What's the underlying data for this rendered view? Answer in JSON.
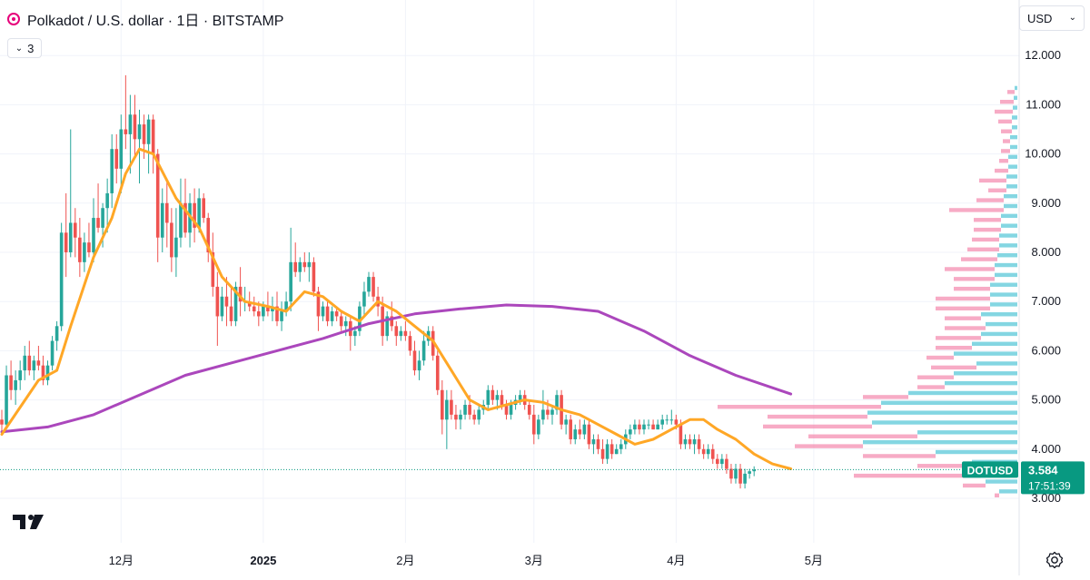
{
  "header": {
    "symbol_title": "Polkadot / U.S. dollar · 1日 · BITSTAMP",
    "indicator_count": "3",
    "currency": "USD"
  },
  "colors": {
    "up": "#26a69a",
    "down": "#ef5350",
    "ma_fast": "#ffa726",
    "ma_slow": "#ab47bc",
    "vp_up": "#5bc8d8",
    "vp_down": "#f48fb1",
    "price_tag": "#089981"
  },
  "price_tag": {
    "symbol": "DOTUSD",
    "price": "3.584",
    "countdown": "17:51:39"
  },
  "chart_data": {
    "type": "candlestick",
    "y_axis": {
      "min": 3.0,
      "max": 12.0,
      "ticks": [
        "3.000",
        "4.000",
        "5.000",
        "6.000",
        "7.000",
        "8.000",
        "9.000",
        "10.000",
        "11.000",
        "12.000"
      ]
    },
    "x_axis": {
      "ticks": [
        "12月",
        "2025",
        "2月",
        "3月",
        "4月",
        "5月"
      ],
      "tick_dates": [
        "2024-12-01",
        "2025-01-01",
        "2025-02-01",
        "2025-03-01",
        "2025-04-01",
        "2025-05-01"
      ]
    },
    "first_date": "2024-11-05",
    "last_price": 3.584,
    "ohlc": [
      [
        4.6,
        4.8,
        4.3,
        4.5
      ],
      [
        4.5,
        5.7,
        4.4,
        5.5
      ],
      [
        5.5,
        5.8,
        5.0,
        5.2
      ],
      [
        5.2,
        5.6,
        4.9,
        5.4
      ],
      [
        5.4,
        5.8,
        5.2,
        5.6
      ],
      [
        5.6,
        6.1,
        5.4,
        5.9
      ],
      [
        5.9,
        6.2,
        5.5,
        5.6
      ],
      [
        5.6,
        5.9,
        5.4,
        5.8
      ],
      [
        5.8,
        6.1,
        5.6,
        5.7
      ],
      [
        5.7,
        5.9,
        5.3,
        5.4
      ],
      [
        5.4,
        5.8,
        5.3,
        5.7
      ],
      [
        5.7,
        6.3,
        5.6,
        6.2
      ],
      [
        6.2,
        6.6,
        6.0,
        6.5
      ],
      [
        6.5,
        8.6,
        6.4,
        8.4
      ],
      [
        8.4,
        9.2,
        7.5,
        8.0
      ],
      [
        8.0,
        10.5,
        7.9,
        8.6
      ],
      [
        8.6,
        8.9,
        7.9,
        8.3
      ],
      [
        8.3,
        8.7,
        7.5,
        7.8
      ],
      [
        7.8,
        8.4,
        7.6,
        8.2
      ],
      [
        8.2,
        8.6,
        7.9,
        8.0
      ],
      [
        8.0,
        9.1,
        7.8,
        8.7
      ],
      [
        8.7,
        9.4,
        8.4,
        8.5
      ],
      [
        8.5,
        9.0,
        8.1,
        8.9
      ],
      [
        8.9,
        9.5,
        8.4,
        9.2
      ],
      [
        9.2,
        10.4,
        8.9,
        10.1
      ],
      [
        10.1,
        10.4,
        9.4,
        9.7
      ],
      [
        9.7,
        10.8,
        9.2,
        10.5
      ],
      [
        10.5,
        11.6,
        10.1,
        10.4
      ],
      [
        10.4,
        11.2,
        9.6,
        10.8
      ],
      [
        10.8,
        11.2,
        9.9,
        10.3
      ],
      [
        10.3,
        10.9,
        9.4,
        10.6
      ],
      [
        10.6,
        10.8,
        9.9,
        10.2
      ],
      [
        10.2,
        10.8,
        9.6,
        10.7
      ],
      [
        10.7,
        10.8,
        9.6,
        10.0
      ],
      [
        10.0,
        10.1,
        7.8,
        8.3
      ],
      [
        8.3,
        9.3,
        8.0,
        9.0
      ],
      [
        9.0,
        9.5,
        8.1,
        8.6
      ],
      [
        8.6,
        8.9,
        7.6,
        7.9
      ],
      [
        7.9,
        8.9,
        7.5,
        8.3
      ],
      [
        8.3,
        9.5,
        8.1,
        9.0
      ],
      [
        9.0,
        9.5,
        8.3,
        8.4
      ],
      [
        8.4,
        9.2,
        8.1,
        9.0
      ],
      [
        9.0,
        9.3,
        8.2,
        8.5
      ],
      [
        8.5,
        9.3,
        8.4,
        9.1
      ],
      [
        9.1,
        9.2,
        8.6,
        8.7
      ],
      [
        8.7,
        8.8,
        7.8,
        8.0
      ],
      [
        8.0,
        8.4,
        7.1,
        7.3
      ],
      [
        7.3,
        7.6,
        6.1,
        6.7
      ],
      [
        6.7,
        7.3,
        6.6,
        7.1
      ],
      [
        7.1,
        7.5,
        6.5,
        6.9
      ],
      [
        6.9,
        7.3,
        6.5,
        6.6
      ],
      [
        6.6,
        7.4,
        6.5,
        7.3
      ],
      [
        7.3,
        7.7,
        6.7,
        7.0
      ],
      [
        7.0,
        7.3,
        6.8,
        7.0
      ],
      [
        7.0,
        7.2,
        6.8,
        6.9
      ],
      [
        6.9,
        7.1,
        6.7,
        6.8
      ],
      [
        6.8,
        7.0,
        6.5,
        6.7
      ],
      [
        6.7,
        7.0,
        6.6,
        6.9
      ],
      [
        6.9,
        7.2,
        6.7,
        6.8
      ],
      [
        6.8,
        7.1,
        6.6,
        6.9
      ],
      [
        6.9,
        7.2,
        6.5,
        6.6
      ],
      [
        6.6,
        7.0,
        6.4,
        6.8
      ],
      [
        6.8,
        7.2,
        6.7,
        7.0
      ],
      [
        7.0,
        8.5,
        6.8,
        7.8
      ],
      [
        7.8,
        8.2,
        7.5,
        7.6
      ],
      [
        7.6,
        7.9,
        7.4,
        7.8
      ],
      [
        7.8,
        8.0,
        7.6,
        7.7
      ],
      [
        7.7,
        8.0,
        7.4,
        7.8
      ],
      [
        7.8,
        7.9,
        7.1,
        7.2
      ],
      [
        7.2,
        7.3,
        6.4,
        6.7
      ],
      [
        6.7,
        7.0,
        6.6,
        6.9
      ],
      [
        6.9,
        7.0,
        6.5,
        6.6
      ],
      [
        6.6,
        6.9,
        6.5,
        6.8
      ],
      [
        6.8,
        6.9,
        6.6,
        6.7
      ],
      [
        6.7,
        6.8,
        6.4,
        6.5
      ],
      [
        6.5,
        6.7,
        6.3,
        6.6
      ],
      [
        6.6,
        6.7,
        6.0,
        6.3
      ],
      [
        6.3,
        6.5,
        6.1,
        6.4
      ],
      [
        6.4,
        7.0,
        6.3,
        6.9
      ],
      [
        6.9,
        7.4,
        6.7,
        7.2
      ],
      [
        7.2,
        7.6,
        7.1,
        7.5
      ],
      [
        7.5,
        7.6,
        7.0,
        7.1
      ],
      [
        7.1,
        7.3,
        6.7,
        6.9
      ],
      [
        6.9,
        7.1,
        6.1,
        6.3
      ],
      [
        6.3,
        6.8,
        6.2,
        6.7
      ],
      [
        6.7,
        7.0,
        6.4,
        6.5
      ],
      [
        6.5,
        6.6,
        6.1,
        6.3
      ],
      [
        6.3,
        6.5,
        6.2,
        6.4
      ],
      [
        6.4,
        6.6,
        6.2,
        6.3
      ],
      [
        6.3,
        6.4,
        5.9,
        6.0
      ],
      [
        6.0,
        6.2,
        5.5,
        5.6
      ],
      [
        5.6,
        6.0,
        5.4,
        5.8
      ],
      [
        5.8,
        6.4,
        5.7,
        6.2
      ],
      [
        6.2,
        6.5,
        6.1,
        6.4
      ],
      [
        6.4,
        6.5,
        5.8,
        5.9
      ],
      [
        5.9,
        6.0,
        5.1,
        5.2
      ],
      [
        5.2,
        5.4,
        4.3,
        4.6
      ],
      [
        4.6,
        5.2,
        4.0,
        5.0
      ],
      [
        5.0,
        5.2,
        4.6,
        4.7
      ],
      [
        4.7,
        4.9,
        4.4,
        4.6
      ],
      [
        4.6,
        4.8,
        4.4,
        4.7
      ],
      [
        4.7,
        5.0,
        4.6,
        4.9
      ],
      [
        4.9,
        5.1,
        4.6,
        4.7
      ],
      [
        4.7,
        4.8,
        4.5,
        4.6
      ],
      [
        4.6,
        4.9,
        4.5,
        4.8
      ],
      [
        4.8,
        5.0,
        4.7,
        4.9
      ],
      [
        4.9,
        5.3,
        4.8,
        5.2
      ],
      [
        5.2,
        5.3,
        4.9,
        5.0
      ],
      [
        5.0,
        5.2,
        4.8,
        5.1
      ],
      [
        5.1,
        5.2,
        4.8,
        4.9
      ],
      [
        4.9,
        5.0,
        4.6,
        4.7
      ],
      [
        4.7,
        5.0,
        4.6,
        4.9
      ],
      [
        4.9,
        5.1,
        4.8,
        5.0
      ],
      [
        5.0,
        5.2,
        4.9,
        5.1
      ],
      [
        5.1,
        5.2,
        4.8,
        4.9
      ],
      [
        4.9,
        5.0,
        4.6,
        4.7
      ],
      [
        4.7,
        4.9,
        4.1,
        4.3
      ],
      [
        4.3,
        4.7,
        4.2,
        4.6
      ],
      [
        4.6,
        5.2,
        4.5,
        4.8
      ],
      [
        4.8,
        5.0,
        4.6,
        4.7
      ],
      [
        4.7,
        4.9,
        4.5,
        4.8
      ],
      [
        4.8,
        5.2,
        4.7,
        5.1
      ],
      [
        5.1,
        5.2,
        4.4,
        4.5
      ],
      [
        4.5,
        4.7,
        4.3,
        4.6
      ],
      [
        4.6,
        4.7,
        4.1,
        4.2
      ],
      [
        4.2,
        4.5,
        4.1,
        4.4
      ],
      [
        4.4,
        4.6,
        4.2,
        4.3
      ],
      [
        4.3,
        4.6,
        4.2,
        4.5
      ],
      [
        4.5,
        4.6,
        4.0,
        4.1
      ],
      [
        4.1,
        4.3,
        3.9,
        4.2
      ],
      [
        4.2,
        4.3,
        3.9,
        4.0
      ],
      [
        4.0,
        4.2,
        3.7,
        3.8
      ],
      [
        3.8,
        4.2,
        3.7,
        4.1
      ],
      [
        4.1,
        4.2,
        3.8,
        3.9
      ],
      [
        3.9,
        4.1,
        3.9,
        4.0
      ],
      [
        4.0,
        4.2,
        3.9,
        4.1
      ],
      [
        4.1,
        4.4,
        4.0,
        4.3
      ],
      [
        4.3,
        4.5,
        4.2,
        4.4
      ],
      [
        4.4,
        4.6,
        4.3,
        4.5
      ],
      [
        4.5,
        4.6,
        4.3,
        4.4
      ],
      [
        4.4,
        4.6,
        4.3,
        4.5
      ],
      [
        4.5,
        4.6,
        4.4,
        4.5
      ],
      [
        4.5,
        4.6,
        4.4,
        4.4
      ],
      [
        4.4,
        4.6,
        4.4,
        4.5
      ],
      [
        4.5,
        4.7,
        4.4,
        4.6
      ],
      [
        4.6,
        4.7,
        4.5,
        4.6
      ],
      [
        4.6,
        4.8,
        4.5,
        4.6
      ],
      [
        4.6,
        4.7,
        4.4,
        4.5
      ],
      [
        4.5,
        4.6,
        4.0,
        4.1
      ],
      [
        4.1,
        4.3,
        4.0,
        4.2
      ],
      [
        4.2,
        4.3,
        4.0,
        4.1
      ],
      [
        4.1,
        4.3,
        3.9,
        4.2
      ],
      [
        4.2,
        4.3,
        3.9,
        4.0
      ],
      [
        4.0,
        4.1,
        3.8,
        3.9
      ],
      [
        3.9,
        4.1,
        3.8,
        4.0
      ],
      [
        4.0,
        4.1,
        3.7,
        3.8
      ],
      [
        3.8,
        3.9,
        3.6,
        3.7
      ],
      [
        3.7,
        3.9,
        3.6,
        3.8
      ],
      [
        3.8,
        3.9,
        3.5,
        3.6
      ],
      [
        3.6,
        3.7,
        3.3,
        3.4
      ],
      [
        3.4,
        3.7,
        3.3,
        3.6
      ],
      [
        3.6,
        3.7,
        3.2,
        3.3
      ],
      [
        3.3,
        3.6,
        3.2,
        3.5
      ],
      [
        3.5,
        3.6,
        3.4,
        3.55
      ],
      [
        3.55,
        3.65,
        3.45,
        3.584
      ]
    ],
    "series": [
      {
        "type": "moving_average",
        "short_window": true,
        "values_sampled": [
          [
            0,
            4.3
          ],
          [
            8,
            5.4
          ],
          [
            12,
            5.6
          ],
          [
            15,
            6.5
          ],
          [
            20,
            7.9
          ],
          [
            24,
            8.7
          ],
          [
            27,
            9.6
          ],
          [
            30,
            10.1
          ],
          [
            33,
            10.0
          ],
          [
            38,
            9.1
          ],
          [
            43,
            8.5
          ],
          [
            48,
            7.5
          ],
          [
            53,
            7.0
          ],
          [
            58,
            6.9
          ],
          [
            62,
            6.8
          ],
          [
            66,
            7.2
          ],
          [
            70,
            7.1
          ],
          [
            74,
            6.8
          ],
          [
            78,
            6.6
          ],
          [
            82,
            7.0
          ],
          [
            86,
            6.8
          ],
          [
            90,
            6.5
          ],
          [
            94,
            6.2
          ],
          [
            98,
            5.6
          ],
          [
            102,
            5.0
          ],
          [
            106,
            4.8
          ],
          [
            110,
            4.9
          ],
          [
            114,
            5.0
          ],
          [
            118,
            4.95
          ],
          [
            122,
            4.8
          ],
          [
            126,
            4.7
          ],
          [
            130,
            4.5
          ],
          [
            134,
            4.3
          ],
          [
            138,
            4.1
          ],
          [
            142,
            4.2
          ],
          [
            146,
            4.4
          ],
          [
            150,
            4.6
          ],
          [
            153,
            4.6
          ],
          [
            156,
            4.4
          ],
          [
            160,
            4.2
          ],
          [
            164,
            3.9
          ],
          [
            168,
            3.7
          ],
          [
            172,
            3.6
          ]
        ]
      },
      {
        "type": "moving_average",
        "long_window": true,
        "values_sampled": [
          [
            0,
            4.35
          ],
          [
            10,
            4.45
          ],
          [
            20,
            4.7
          ],
          [
            30,
            5.1
          ],
          [
            40,
            5.5
          ],
          [
            50,
            5.75
          ],
          [
            60,
            6.0
          ],
          [
            70,
            6.25
          ],
          [
            80,
            6.55
          ],
          [
            90,
            6.75
          ],
          [
            100,
            6.85
          ],
          [
            110,
            6.93
          ],
          [
            120,
            6.9
          ],
          [
            130,
            6.8
          ],
          [
            140,
            6.4
          ],
          [
            150,
            5.9
          ],
          [
            160,
            5.5
          ],
          [
            172,
            5.12
          ]
        ]
      }
    ],
    "volume_profile": [
      {
        "price": 3.1,
        "up": 20,
        "down": 5
      },
      {
        "price": 3.3,
        "up": 35,
        "down": 25
      },
      {
        "price": 3.5,
        "up": 40,
        "down": 140
      },
      {
        "price": 3.7,
        "up": 50,
        "down": 60
      },
      {
        "price": 3.9,
        "up": 90,
        "down": 80
      },
      {
        "price": 4.1,
        "up": 170,
        "down": 75
      },
      {
        "price": 4.3,
        "up": 110,
        "down": 120
      },
      {
        "price": 4.5,
        "up": 160,
        "down": 120
      },
      {
        "price": 4.7,
        "up": 165,
        "down": 110
      },
      {
        "price": 4.9,
        "up": 150,
        "down": 180
      },
      {
        "price": 5.1,
        "up": 120,
        "down": 50
      },
      {
        "price": 5.3,
        "up": 80,
        "down": 30
      },
      {
        "price": 5.5,
        "up": 70,
        "down": 40
      },
      {
        "price": 5.7,
        "up": 45,
        "down": 50
      },
      {
        "price": 5.9,
        "up": 70,
        "down": 30
      },
      {
        "price": 6.1,
        "up": 50,
        "down": 40
      },
      {
        "price": 6.3,
        "up": 40,
        "down": 50
      },
      {
        "price": 6.5,
        "up": 35,
        "down": 45
      },
      {
        "price": 6.7,
        "up": 40,
        "down": 40
      },
      {
        "price": 6.9,
        "up": 30,
        "down": 60
      },
      {
        "price": 7.1,
        "up": 30,
        "down": 60
      },
      {
        "price": 7.3,
        "up": 30,
        "down": 40
      },
      {
        "price": 7.5,
        "up": 25,
        "down": 45
      },
      {
        "price": 7.7,
        "up": 25,
        "down": 55
      },
      {
        "price": 7.9,
        "up": 22,
        "down": 40
      },
      {
        "price": 8.1,
        "up": 20,
        "down": 35
      },
      {
        "price": 8.3,
        "up": 20,
        "down": 30
      },
      {
        "price": 8.5,
        "up": 18,
        "down": 30
      },
      {
        "price": 8.7,
        "up": 18,
        "down": 30
      },
      {
        "price": 8.9,
        "up": 15,
        "down": 60
      },
      {
        "price": 9.1,
        "up": 15,
        "down": 30
      },
      {
        "price": 9.3,
        "up": 12,
        "down": 20
      },
      {
        "price": 9.5,
        "up": 12,
        "down": 30
      },
      {
        "price": 9.7,
        "up": 10,
        "down": 15
      },
      {
        "price": 9.9,
        "up": 10,
        "down": 10
      },
      {
        "price": 10.1,
        "up": 8,
        "down": 10
      },
      {
        "price": 10.3,
        "up": 8,
        "down": 8
      },
      {
        "price": 10.5,
        "up": 6,
        "down": 12
      },
      {
        "price": 10.7,
        "up": 6,
        "down": 15
      },
      {
        "price": 10.9,
        "up": 5,
        "down": 20
      },
      {
        "price": 11.1,
        "up": 4,
        "down": 15
      },
      {
        "price": 11.3,
        "up": 3,
        "down": 8
      }
    ]
  }
}
